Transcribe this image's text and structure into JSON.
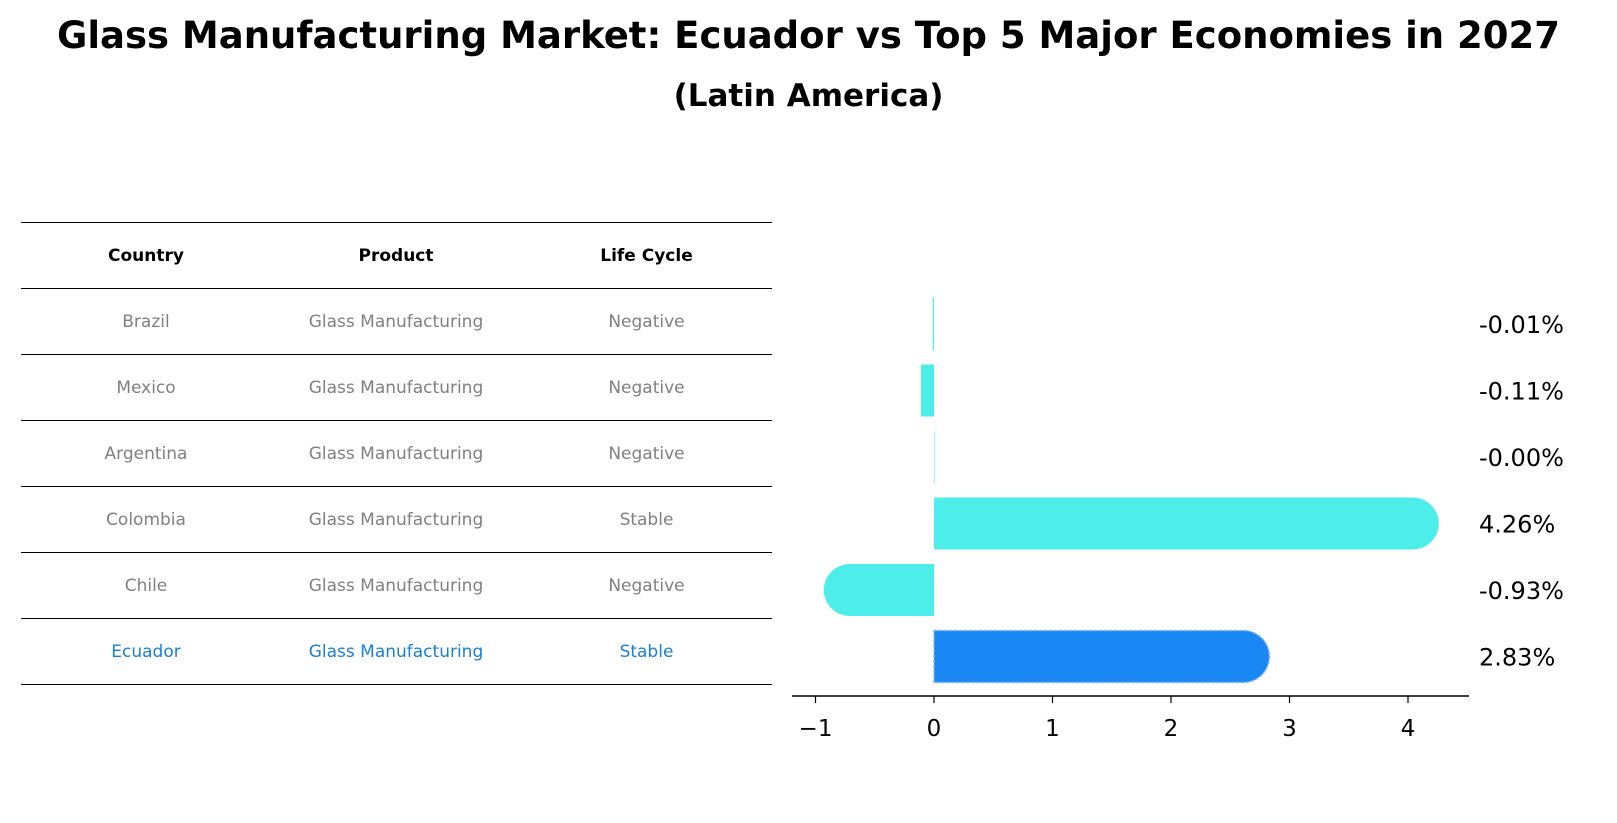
{
  "title": "Glass Manufacturing Market: Ecuador vs Top 5 Major Economies in 2027",
  "subtitle": "(Latin America)",
  "table": {
    "headers": [
      "Country",
      "Product",
      "Life Cycle"
    ],
    "rows": [
      {
        "country": "Brazil",
        "product": "Glass Manufacturing",
        "life_cycle": "Negative"
      },
      {
        "country": "Mexico",
        "product": "Glass Manufacturing",
        "life_cycle": "Negative"
      },
      {
        "country": "Argentina",
        "product": "Glass Manufacturing",
        "life_cycle": "Negative"
      },
      {
        "country": "Colombia",
        "product": "Glass Manufacturing",
        "life_cycle": "Stable"
      },
      {
        "country": "Chile",
        "product": "Glass Manufacturing",
        "life_cycle": "Negative"
      },
      {
        "country": "Ecuador",
        "product": "Glass Manufacturing",
        "life_cycle": "Stable"
      }
    ],
    "highlight_color": "#1a7fd6",
    "muted_color": "#808080"
  },
  "chart_data": {
    "type": "bar",
    "orientation": "horizontal",
    "categories": [
      "Brazil",
      "Mexico",
      "Argentina",
      "Colombia",
      "Chile",
      "Ecuador"
    ],
    "values": [
      -0.01,
      -0.11,
      -0.0,
      4.26,
      -0.93,
      2.83
    ],
    "labels": [
      "-0.01%",
      "-0.11%",
      "-0.00%",
      "4.26%",
      "-0.93%",
      "2.83%"
    ],
    "xlim": [
      -1.2,
      4.5
    ],
    "xticks": [
      "-1",
      "0",
      "1",
      "2",
      "3",
      "4"
    ],
    "bar_color": "#4deeea",
    "highlight_color": "#1a87f4",
    "highlight_category": "Ecuador",
    "grid": false
  }
}
